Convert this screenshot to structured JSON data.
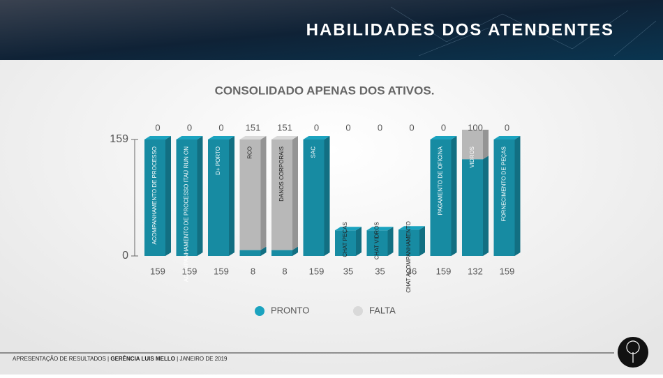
{
  "header": {
    "title": "HABILIDADES DOS ATENDENTES"
  },
  "chart_data": {
    "type": "bar3d_stacked",
    "title": "CONSOLIDADO APENAS DOS ATIVOS.",
    "categories": [
      "ACOMPANHAMENTO DE PROCESSO",
      "ACOMPANHAMENTO DE PROCESSO ITAÚ RUN ON",
      "D+ PORTO",
      "RCO",
      "DANOS CORPORAIS",
      "SAC",
      "CHAT PEÇAS",
      "CHAT VIDROS",
      "CHAT ACOMPANHAMENTO",
      "PAGAMENTO DE OFICINA",
      "VIDROS",
      "FORNECIMENTO DE PEÇAS"
    ],
    "series": [
      {
        "name": "PRONTO",
        "color": "#1ba3bf",
        "values": [
          159,
          159,
          159,
          8,
          8,
          159,
          35,
          35,
          36,
          159,
          132,
          159
        ]
      },
      {
        "name": "FALTA",
        "color": "#d9d9d9",
        "values": [
          0,
          0,
          0,
          151,
          151,
          0,
          0,
          0,
          0,
          0,
          100,
          0
        ]
      }
    ],
    "ylim": [
      0,
      159
    ],
    "yticks": [
      0,
      159
    ]
  },
  "footer": {
    "left": "APRESENTAÇÃO DE RESULTADOS |",
    "bold": "GERÊNCIA LUIS MELLO",
    "right": "| JANEIRO DE 2019"
  }
}
